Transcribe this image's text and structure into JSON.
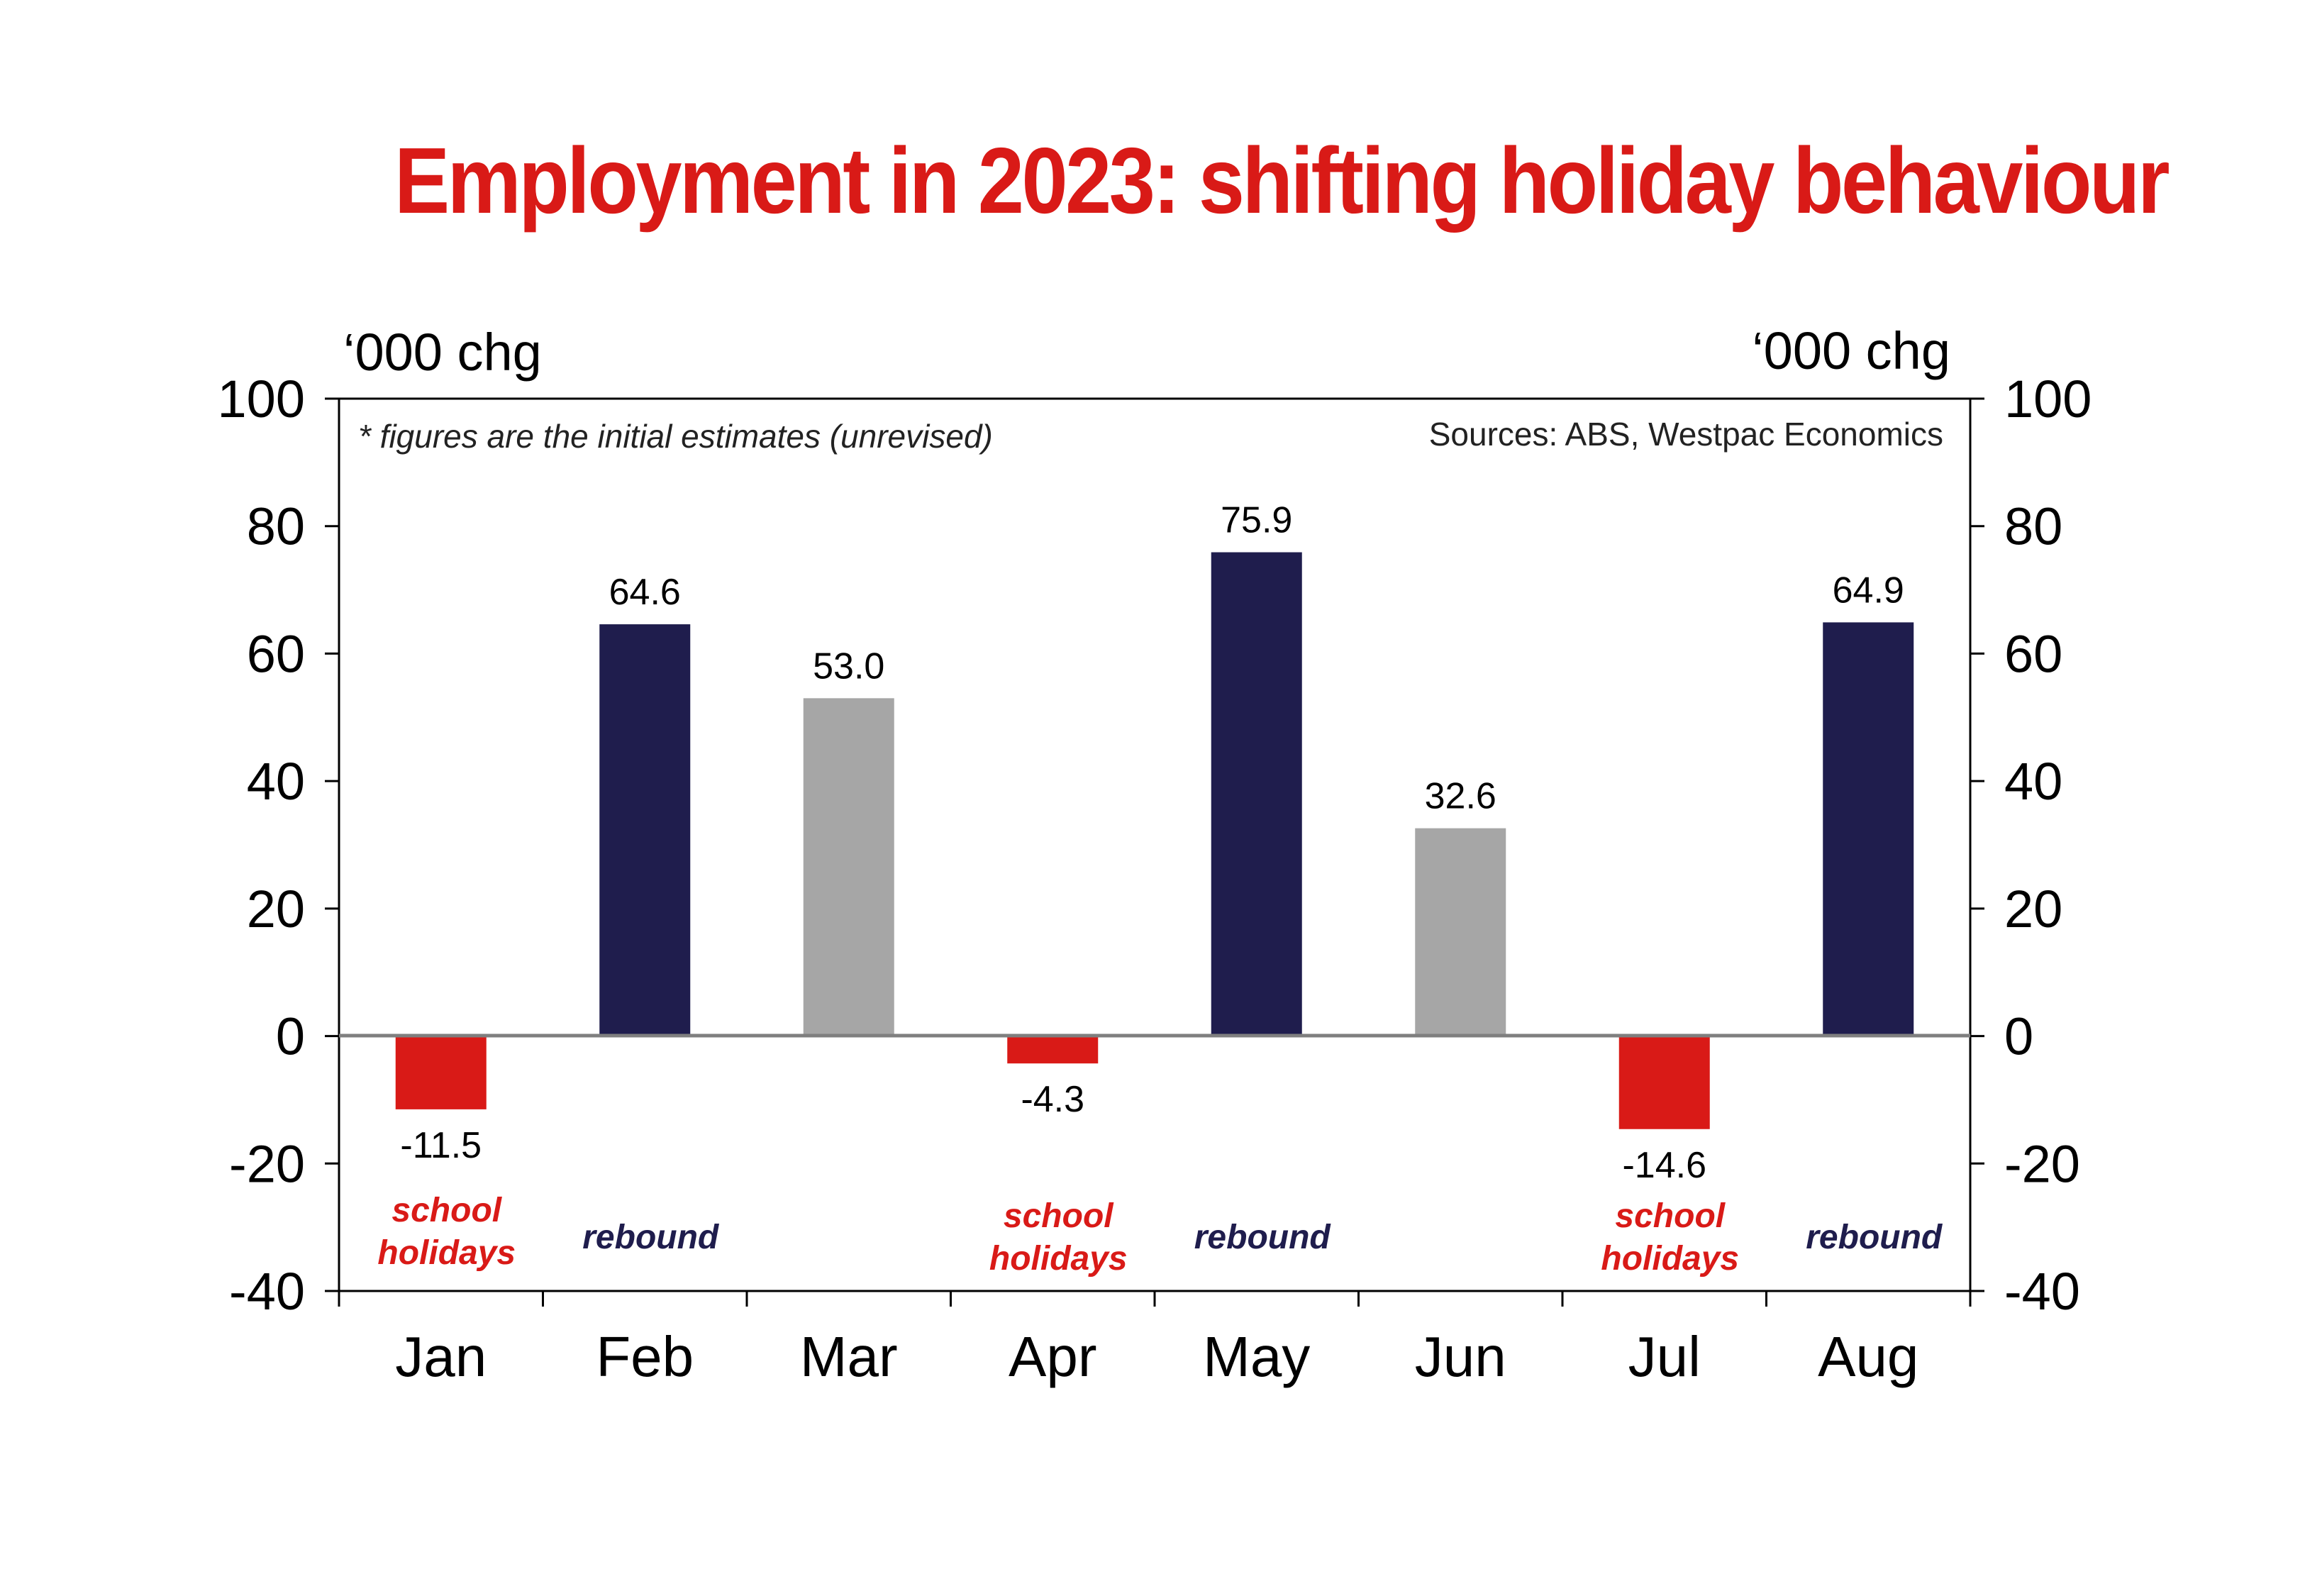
{
  "chart_data": {
    "type": "bar",
    "title": "Employment in 2023: shifting holiday behaviour",
    "ylabel_left": "‘000 chg",
    "ylabel_right": "‘000 chg",
    "ylim": [
      -40,
      100
    ],
    "yticks": [
      100,
      80,
      60,
      40,
      20,
      0,
      -20,
      -40
    ],
    "ytick_labels": [
      "100",
      "80",
      "60",
      "40",
      "20",
      "0",
      "-20",
      "-40"
    ],
    "categories": [
      "Jan",
      "Feb",
      "Mar",
      "Apr",
      "May",
      "Jun",
      "Jul",
      "Aug"
    ],
    "values": [
      -11.5,
      64.6,
      53.0,
      -4.3,
      75.9,
      32.6,
      -14.6,
      64.9
    ],
    "value_labels": [
      "-11.5",
      "64.6",
      "53.0",
      "-4.3",
      "75.9",
      "32.6",
      "-14.6",
      "64.9"
    ],
    "bar_colors": [
      "#d91a17",
      "#1f1d4d",
      "#a6a6a6",
      "#d91a17",
      "#1f1d4d",
      "#a6a6a6",
      "#d91a17",
      "#1f1d4d"
    ],
    "annotations": [
      {
        "category": "Jan",
        "lines": [
          "school",
          "holidays"
        ],
        "color": "#d91a17"
      },
      {
        "category": "Feb",
        "lines": [
          "rebound"
        ],
        "color": "#1f1d4d"
      },
      {
        "category": "Apr",
        "lines": [
          "school",
          "holidays"
        ],
        "color": "#d91a17"
      },
      {
        "category": "May",
        "lines": [
          "rebound"
        ],
        "color": "#1f1d4d"
      },
      {
        "category": "Jul",
        "lines": [
          "school",
          "holidays"
        ],
        "color": "#d91a17"
      },
      {
        "category": "Aug",
        "lines": [
          "rebound"
        ],
        "color": "#1f1d4d"
      }
    ],
    "note": "* figures are the initial estimates (unrevised)",
    "source": "Sources: ABS, Westpac Economics",
    "grid": false,
    "title_color": "#d91a17"
  }
}
